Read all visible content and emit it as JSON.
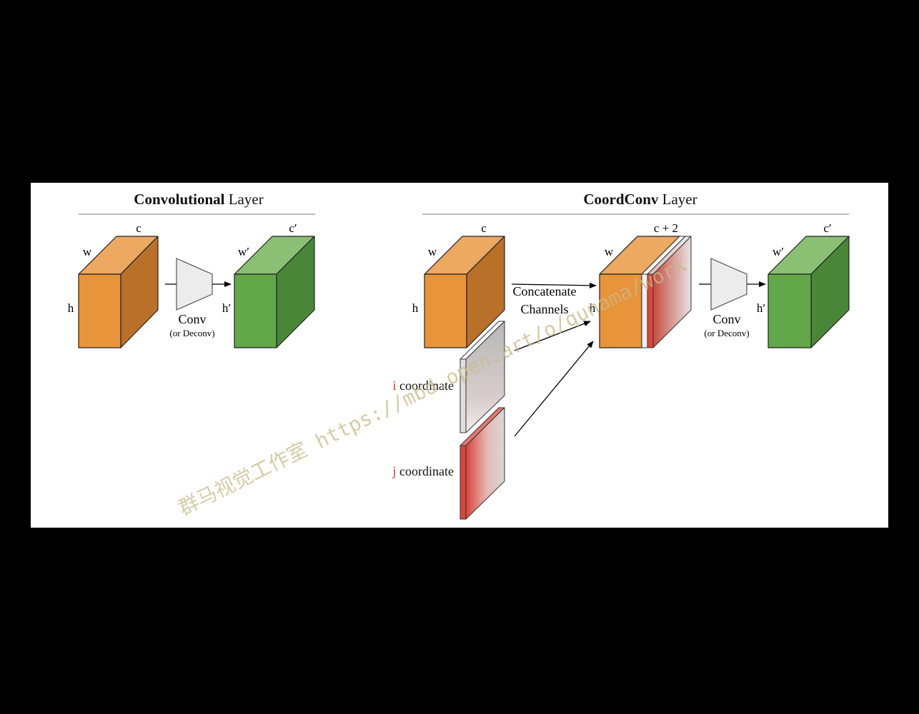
{
  "left_panel": {
    "title_bold": "Convolutional",
    "title_rest": " Layer",
    "input": {
      "w": "w",
      "h": "h",
      "c": "c"
    },
    "op": {
      "label": "Conv",
      "sub": "(or Deconv)"
    },
    "output": {
      "w": "w′",
      "h": "h′",
      "c": "c′"
    }
  },
  "right_panel": {
    "title_bold": "CoordConv",
    "title_rest": " Layer",
    "input": {
      "w": "w",
      "h": "h",
      "c": "c"
    },
    "i_coord": {
      "letter": "i",
      "rest": " coordinate"
    },
    "j_coord": {
      "letter": "j",
      "rest": " coordinate"
    },
    "concat": {
      "line1": "Concatenate",
      "line2": "Channels"
    },
    "mid": {
      "w": "w",
      "h": "h",
      "c": "c + 2"
    },
    "op": {
      "label": "Conv",
      "sub": "(or Deconv)"
    },
    "output": {
      "w": "w′",
      "h": "h′",
      "c": "c′"
    }
  },
  "watermark": "群马视觉工作室 https://mbd.open.art/o/qunama/work",
  "colors": {
    "orange_front": "#E8943A",
    "orange_side": "#B9712A",
    "orange_top": "#EDA862",
    "green_front": "#62A84A",
    "green_side": "#4A8638",
    "green_top": "#8ABF74",
    "coord_red": "#D9453A",
    "accent_red": "#C0392B",
    "rule_gray": "#BDBDBD"
  }
}
